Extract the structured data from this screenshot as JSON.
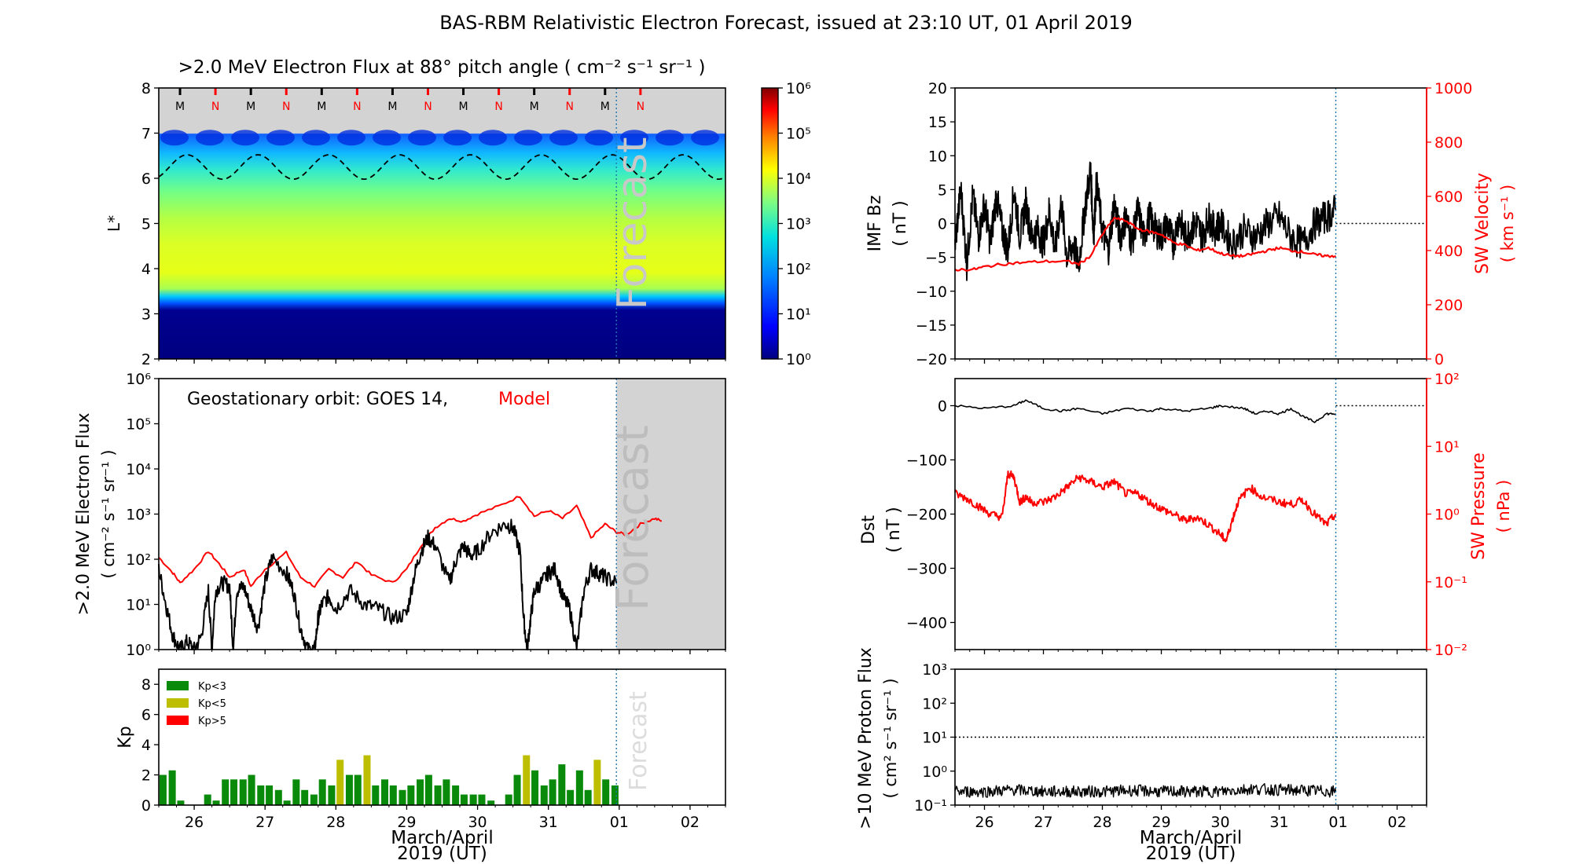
{
  "figure": {
    "title": "BAS-RBM Relativistic Electron Forecast, issued at 23:10 UT, 01 April 2019",
    "colors": {
      "model": "#ff0000",
      "obs": "#000000",
      "forecast_shade": "#d3d3d3",
      "kp_low": "#0a8a0a",
      "kp_mid": "#bebe00",
      "kp_high": "#ff0000"
    }
  },
  "chart_data": [
    {
      "id": "flux_map",
      "type": "heatmap",
      "title": ">2.0 MeV Electron Flux at 88° pitch angle ( cm⁻² s⁻¹ sr⁻¹ )",
      "ylabel": "L*",
      "xlim": [
        25.5,
        33.5
      ],
      "ylim": [
        2,
        8
      ],
      "yticks": [
        "2",
        "3",
        "4",
        "5",
        "6",
        "7",
        "8"
      ],
      "forecast_start": 31.96,
      "forecast_label": "Forecast",
      "markers": [
        "M",
        "N",
        "M",
        "N",
        "M",
        "N",
        "M",
        "N",
        "M",
        "N",
        "M",
        "N",
        "M",
        "N"
      ],
      "marker_colors": [
        "#000000",
        "#ff0000",
        "#000000",
        "#ff0000",
        "#000000",
        "#ff0000",
        "#000000",
        "#ff0000",
        "#000000",
        "#ff0000",
        "#000000",
        "#ff0000",
        "#000000",
        "#ff0000"
      ],
      "colorbar": {
        "ticks": [
          "10⁰",
          "10¹",
          "10²",
          "10³",
          "10⁴",
          "10⁵",
          "10⁶"
        ]
      },
      "bands": [
        {
          "from": 2.0,
          "to": 3.1,
          "level": 0.0
        },
        {
          "from": 3.1,
          "to": 3.3,
          "level": 0.3
        },
        {
          "from": 3.3,
          "to": 3.5,
          "level": 0.5
        },
        {
          "from": 3.5,
          "to": 4.6,
          "level": 0.62
        },
        {
          "from": 4.6,
          "to": 5.6,
          "level": 0.55
        },
        {
          "from": 5.6,
          "to": 6.3,
          "level": 0.45
        },
        {
          "from": 6.3,
          "to": 7.0,
          "level": 0.25
        }
      ]
    },
    {
      "id": "geo_flux",
      "type": "line",
      "annotation": "Geostationary orbit:   GOES 14,",
      "annotation_model": "Model",
      "ylabel": ">2.0 MeV Electron Flux",
      "ylabel2": "( cm⁻² s⁻¹ sr⁻¹ )",
      "yscale": "log",
      "ylim": [
        1,
        1000000
      ],
      "yticks": [
        "10⁰",
        "10¹",
        "10²",
        "10³",
        "10⁴",
        "10⁵",
        "10⁶"
      ],
      "forecast_label": "Forecast",
      "series": [
        {
          "name": "Model",
          "color": "#ff0000",
          "x": [
            25.5,
            25.7,
            25.8,
            26.0,
            26.2,
            26.35,
            26.5,
            26.7,
            26.8,
            27.0,
            27.3,
            27.5,
            27.7,
            27.9,
            28.1,
            28.3,
            28.5,
            28.8,
            29.0,
            29.2,
            29.4,
            29.6,
            29.8,
            30.0,
            30.3,
            30.6,
            30.8,
            31.0,
            31.2,
            31.4,
            31.6,
            31.8,
            31.96,
            32.1,
            32.3,
            32.5,
            32.6
          ],
          "y": [
            110,
            50,
            30,
            60,
            150,
            80,
            40,
            60,
            25,
            60,
            140,
            40,
            25,
            60,
            40,
            90,
            45,
            30,
            60,
            200,
            500,
            800,
            700,
            1000,
            1500,
            2500,
            900,
            1200,
            800,
            1500,
            300,
            600,
            400,
            350,
            600,
            800,
            700
          ]
        },
        {
          "name": "GOES 14",
          "color": "#000000",
          "x": [
            25.5,
            25.6,
            25.7,
            25.8,
            25.9,
            26.0,
            26.1,
            26.2,
            26.25,
            26.3,
            26.4,
            26.5,
            26.55,
            26.6,
            26.7,
            26.8,
            26.9,
            27.0,
            27.1,
            27.3,
            27.4,
            27.5,
            27.6,
            27.7,
            27.75,
            27.8,
            27.9,
            28.0,
            28.2,
            28.4,
            28.6,
            28.8,
            29.0,
            29.1,
            29.2,
            29.3,
            29.4,
            29.6,
            29.7,
            29.8,
            29.9,
            30.0,
            30.2,
            30.4,
            30.5,
            30.6,
            30.65,
            30.7,
            30.75,
            30.8,
            30.9,
            31.0,
            31.1,
            31.2,
            31.3,
            31.4,
            31.5,
            31.6,
            31.7,
            31.8,
            31.96
          ],
          "y": [
            60,
            10,
            2,
            1,
            1.5,
            1,
            2,
            20,
            1,
            20,
            30,
            25,
            1,
            20,
            25,
            8,
            3,
            30,
            110,
            50,
            20,
            3,
            1,
            1,
            5,
            10,
            15,
            8,
            20,
            10,
            8,
            5,
            6,
            40,
            150,
            300,
            200,
            30,
            100,
            200,
            120,
            150,
            400,
            600,
            500,
            150,
            5,
            1,
            5,
            20,
            30,
            50,
            60,
            15,
            8,
            1,
            20,
            60,
            50,
            40,
            30
          ]
        }
      ]
    },
    {
      "id": "kp",
      "type": "bar",
      "ylabel": "Kp",
      "ylim": [
        0,
        9
      ],
      "yticks": [
        "0",
        "2",
        "4",
        "6",
        "8"
      ],
      "xlabel": "March/April",
      "xlabel2": "2019 (UT)",
      "xticks": [
        "26",
        "27",
        "28",
        "29",
        "30",
        "31",
        "01",
        "02"
      ],
      "xtick_pos": [
        26,
        27,
        28,
        29,
        30,
        31,
        32,
        33
      ],
      "forecast_label": "Forecast",
      "legend": [
        {
          "label": "Kp<3",
          "color": "#0a8a0a"
        },
        {
          "label": "Kp<5",
          "color": "#bebe00"
        },
        {
          "label": "Kp>5",
          "color": "#ff0000"
        }
      ],
      "bar_width": 0.1,
      "x": [
        25.56,
        25.69,
        25.81,
        25.94,
        26.06,
        26.19,
        26.31,
        26.44,
        26.56,
        26.69,
        26.81,
        26.94,
        27.06,
        27.19,
        27.31,
        27.44,
        27.56,
        27.69,
        27.81,
        27.94,
        28.06,
        28.19,
        28.31,
        28.44,
        28.56,
        28.69,
        28.81,
        28.94,
        29.06,
        29.19,
        29.31,
        29.44,
        29.56,
        29.69,
        29.81,
        29.94,
        30.06,
        30.19,
        30.31,
        30.44,
        30.56,
        30.69,
        30.81,
        30.94,
        31.06,
        31.19,
        31.31,
        31.44,
        31.56,
        31.69,
        31.81,
        31.94
      ],
      "values": [
        2.0,
        2.3,
        0.3,
        0,
        0,
        0.7,
        0.3,
        1.7,
        1.7,
        1.7,
        2.0,
        1.3,
        1.3,
        1.0,
        0.3,
        1.7,
        1.0,
        0.7,
        1.7,
        1.3,
        3.0,
        2.0,
        2.0,
        3.3,
        1.3,
        1.7,
        1.3,
        1.0,
        1.3,
        1.7,
        2.0,
        1.3,
        1.7,
        1.3,
        0.7,
        0.7,
        0.7,
        0.3,
        0,
        0.7,
        2.0,
        3.3,
        2.3,
        1.3,
        1.7,
        2.7,
        1.0,
        2.3,
        1.0,
        3.0,
        1.7,
        1.3
      ]
    },
    {
      "id": "imf_bz",
      "type": "line",
      "ylabel": "IMF Bz",
      "ylabel2": "( nT )",
      "ylim": [
        -20,
        20
      ],
      "yticks": [
        "−20",
        "−15",
        "−10",
        "−5",
        "0",
        "5",
        "10",
        "15",
        "20"
      ],
      "y2label": "SW Velocity",
      "y2label2": "( km s⁻¹ )",
      "y2lim": [
        0,
        1000
      ],
      "y2ticks": [
        "0",
        "200",
        "400",
        "600",
        "800",
        "1000"
      ],
      "series": [
        {
          "name": "",
          "color": "#000000",
          "x": [
            25.5,
            25.6,
            25.7,
            25.8,
            25.9,
            26.0,
            26.1,
            26.2,
            26.3,
            26.4,
            26.5,
            26.6,
            26.7,
            26.8,
            26.9,
            27.0,
            27.1,
            27.2,
            27.3,
            27.4,
            27.5,
            27.6,
            27.7,
            27.8,
            27.85,
            27.9,
            28.0,
            28.1,
            28.2,
            28.3,
            28.4,
            28.5,
            28.6,
            28.7,
            28.8,
            28.9,
            29.0,
            29.1,
            29.2,
            29.3,
            29.4,
            29.5,
            29.6,
            29.7,
            29.8,
            29.9,
            30.0,
            30.2,
            30.4,
            30.6,
            30.8,
            31.0,
            31.2,
            31.4,
            31.6,
            31.8,
            31.96
          ],
          "y": [
            -3,
            5,
            -6,
            4,
            -2,
            3,
            -3,
            4,
            -1,
            -4,
            5,
            -2,
            3,
            -2,
            -1,
            -3,
            2,
            -4,
            3,
            -5,
            -3,
            -6,
            2,
            8,
            -2,
            6,
            -1,
            -4,
            3,
            -2,
            1,
            -3,
            2,
            -2,
            1,
            -1,
            -2,
            0,
            -3,
            1,
            -2,
            -1,
            0,
            -2,
            1,
            -1,
            0,
            -3,
            -1,
            -2,
            0,
            1,
            -2,
            -3,
            0,
            1,
            2
          ]
        },
        {
          "name": "",
          "color": "#ff0000",
          "axis": "y2",
          "x": [
            25.5,
            25.8,
            26.0,
            26.3,
            26.6,
            27.0,
            27.4,
            27.6,
            27.8,
            28.0,
            28.2,
            28.4,
            28.6,
            28.8,
            29.0,
            29.2,
            29.4,
            29.6,
            29.8,
            30.0,
            30.2,
            30.4,
            30.6,
            30.8,
            31.0,
            31.2,
            31.4,
            31.6,
            31.8,
            31.96
          ],
          "y": [
            330,
            330,
            340,
            350,
            355,
            360,
            360,
            350,
            380,
            460,
            520,
            510,
            480,
            470,
            460,
            430,
            420,
            400,
            410,
            390,
            380,
            380,
            390,
            400,
            410,
            400,
            395,
            385,
            380,
            380
          ]
        }
      ]
    },
    {
      "id": "dst",
      "type": "line",
      "ylabel": "Dst",
      "ylabel2": "( nT )",
      "ylim": [
        -450,
        50
      ],
      "yticks": [
        "−400",
        "−300",
        "−200",
        "−100",
        "0"
      ],
      "y2label": "SW Pressure",
      "y2label2": "( nPa )",
      "y2scale": "log",
      "y2lim": [
        0.01,
        100
      ],
      "y2ticks": [
        "10⁻²",
        "10⁻¹",
        "10⁰",
        "10¹",
        "10²"
      ],
      "series": [
        {
          "name": "",
          "color": "#000000",
          "x": [
            25.5,
            26.0,
            26.5,
            26.7,
            27.0,
            27.3,
            27.6,
            28.0,
            28.4,
            28.8,
            29.0,
            29.4,
            29.8,
            30.0,
            30.4,
            30.6,
            30.8,
            31.0,
            31.2,
            31.4,
            31.6,
            31.8,
            31.96
          ],
          "y": [
            0,
            -5,
            0,
            10,
            -5,
            -10,
            -5,
            -15,
            -5,
            -10,
            -5,
            -10,
            -5,
            0,
            -5,
            -15,
            -10,
            -15,
            -5,
            -20,
            -30,
            -15,
            -15
          ]
        },
        {
          "name": "",
          "color": "#ff0000",
          "axis": "y2",
          "x": [
            25.5,
            25.7,
            25.9,
            26.1,
            26.3,
            26.4,
            26.5,
            26.6,
            26.7,
            26.8,
            27.0,
            27.2,
            27.4,
            27.6,
            27.8,
            28.0,
            28.2,
            28.4,
            28.6,
            28.8,
            29.0,
            29.2,
            29.4,
            29.6,
            29.8,
            30.0,
            30.1,
            30.2,
            30.3,
            30.5,
            30.7,
            31.0,
            31.2,
            31.4,
            31.6,
            31.8,
            31.96
          ],
          "y": [
            2.0,
            1.7,
            1.3,
            1.0,
            0.9,
            4.0,
            3.5,
            1.5,
            1.8,
            1.5,
            1.5,
            1.8,
            2.5,
            3.5,
            3.0,
            2.5,
            3.0,
            2.0,
            2.0,
            1.5,
            1.2,
            1.0,
            0.8,
            0.9,
            0.7,
            0.5,
            0.4,
            0.8,
            1.5,
            2.5,
            1.8,
            1.5,
            1.4,
            1.6,
            1.0,
            0.7,
            1.0
          ]
        }
      ]
    },
    {
      "id": "proton",
      "type": "line",
      "ylabel": ">10 MeV Proton Flux",
      "ylabel2": "( cm² s⁻¹ sr⁻¹ )",
      "yscale": "log",
      "ylim": [
        0.1,
        1000
      ],
      "yticks": [
        "10⁻¹",
        "10⁰",
        "10¹",
        "10²",
        "10³"
      ],
      "threshold": 10,
      "xlabel": "March/April",
      "xlabel2": "2019 (UT)",
      "xticks": [
        "26",
        "27",
        "28",
        "29",
        "30",
        "31",
        "01",
        "02"
      ],
      "xtick_pos": [
        26,
        27,
        28,
        29,
        30,
        31,
        32,
        33
      ],
      "series": [
        {
          "name": "",
          "color": "#000000",
          "x": [
            25.5,
            26.0,
            26.5,
            27.0,
            27.5,
            28.0,
            28.5,
            29.0,
            29.5,
            30.0,
            30.5,
            31.0,
            31.5,
            31.96
          ],
          "y": [
            0.25,
            0.25,
            0.28,
            0.25,
            0.25,
            0.25,
            0.27,
            0.25,
            0.25,
            0.25,
            0.3,
            0.28,
            0.27,
            0.25
          ]
        }
      ]
    }
  ]
}
